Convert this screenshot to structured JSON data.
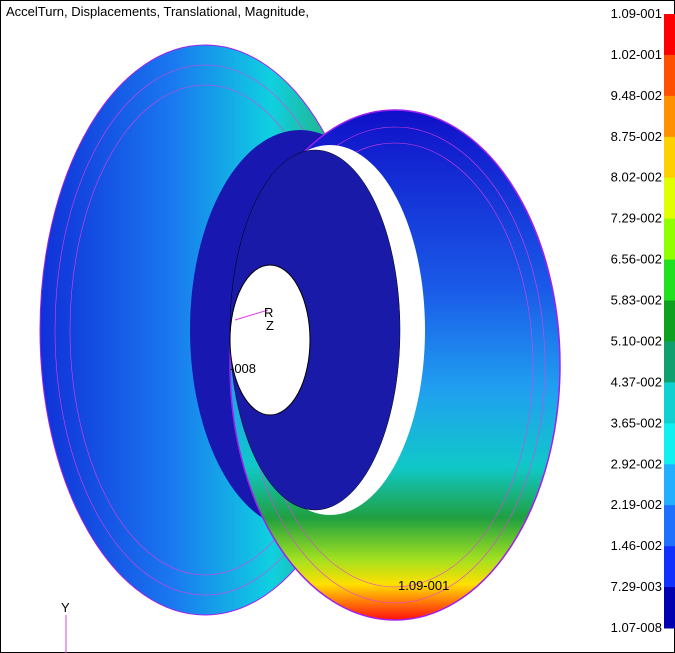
{
  "viewport": {
    "title": "AccelTurn, Displacements, Translational, Magnitude,",
    "legend_labels": [
      "1.09-001",
      "1.02-001",
      "9.48-002",
      "8.75-002",
      "8.02-002",
      "7.29-002",
      "6.56-002",
      "5.83-002",
      "5.10-002",
      "4.37-002",
      "3.65-002",
      "2.92-002",
      "2.19-002",
      "1.46-002",
      "7.29-003",
      "1.07-008"
    ],
    "annotations": {
      "max_label": "1.09-001",
      "min_label": "-008",
      "axis_r": "R",
      "axis_z": "Z",
      "axis_y": "Y"
    }
  }
}
